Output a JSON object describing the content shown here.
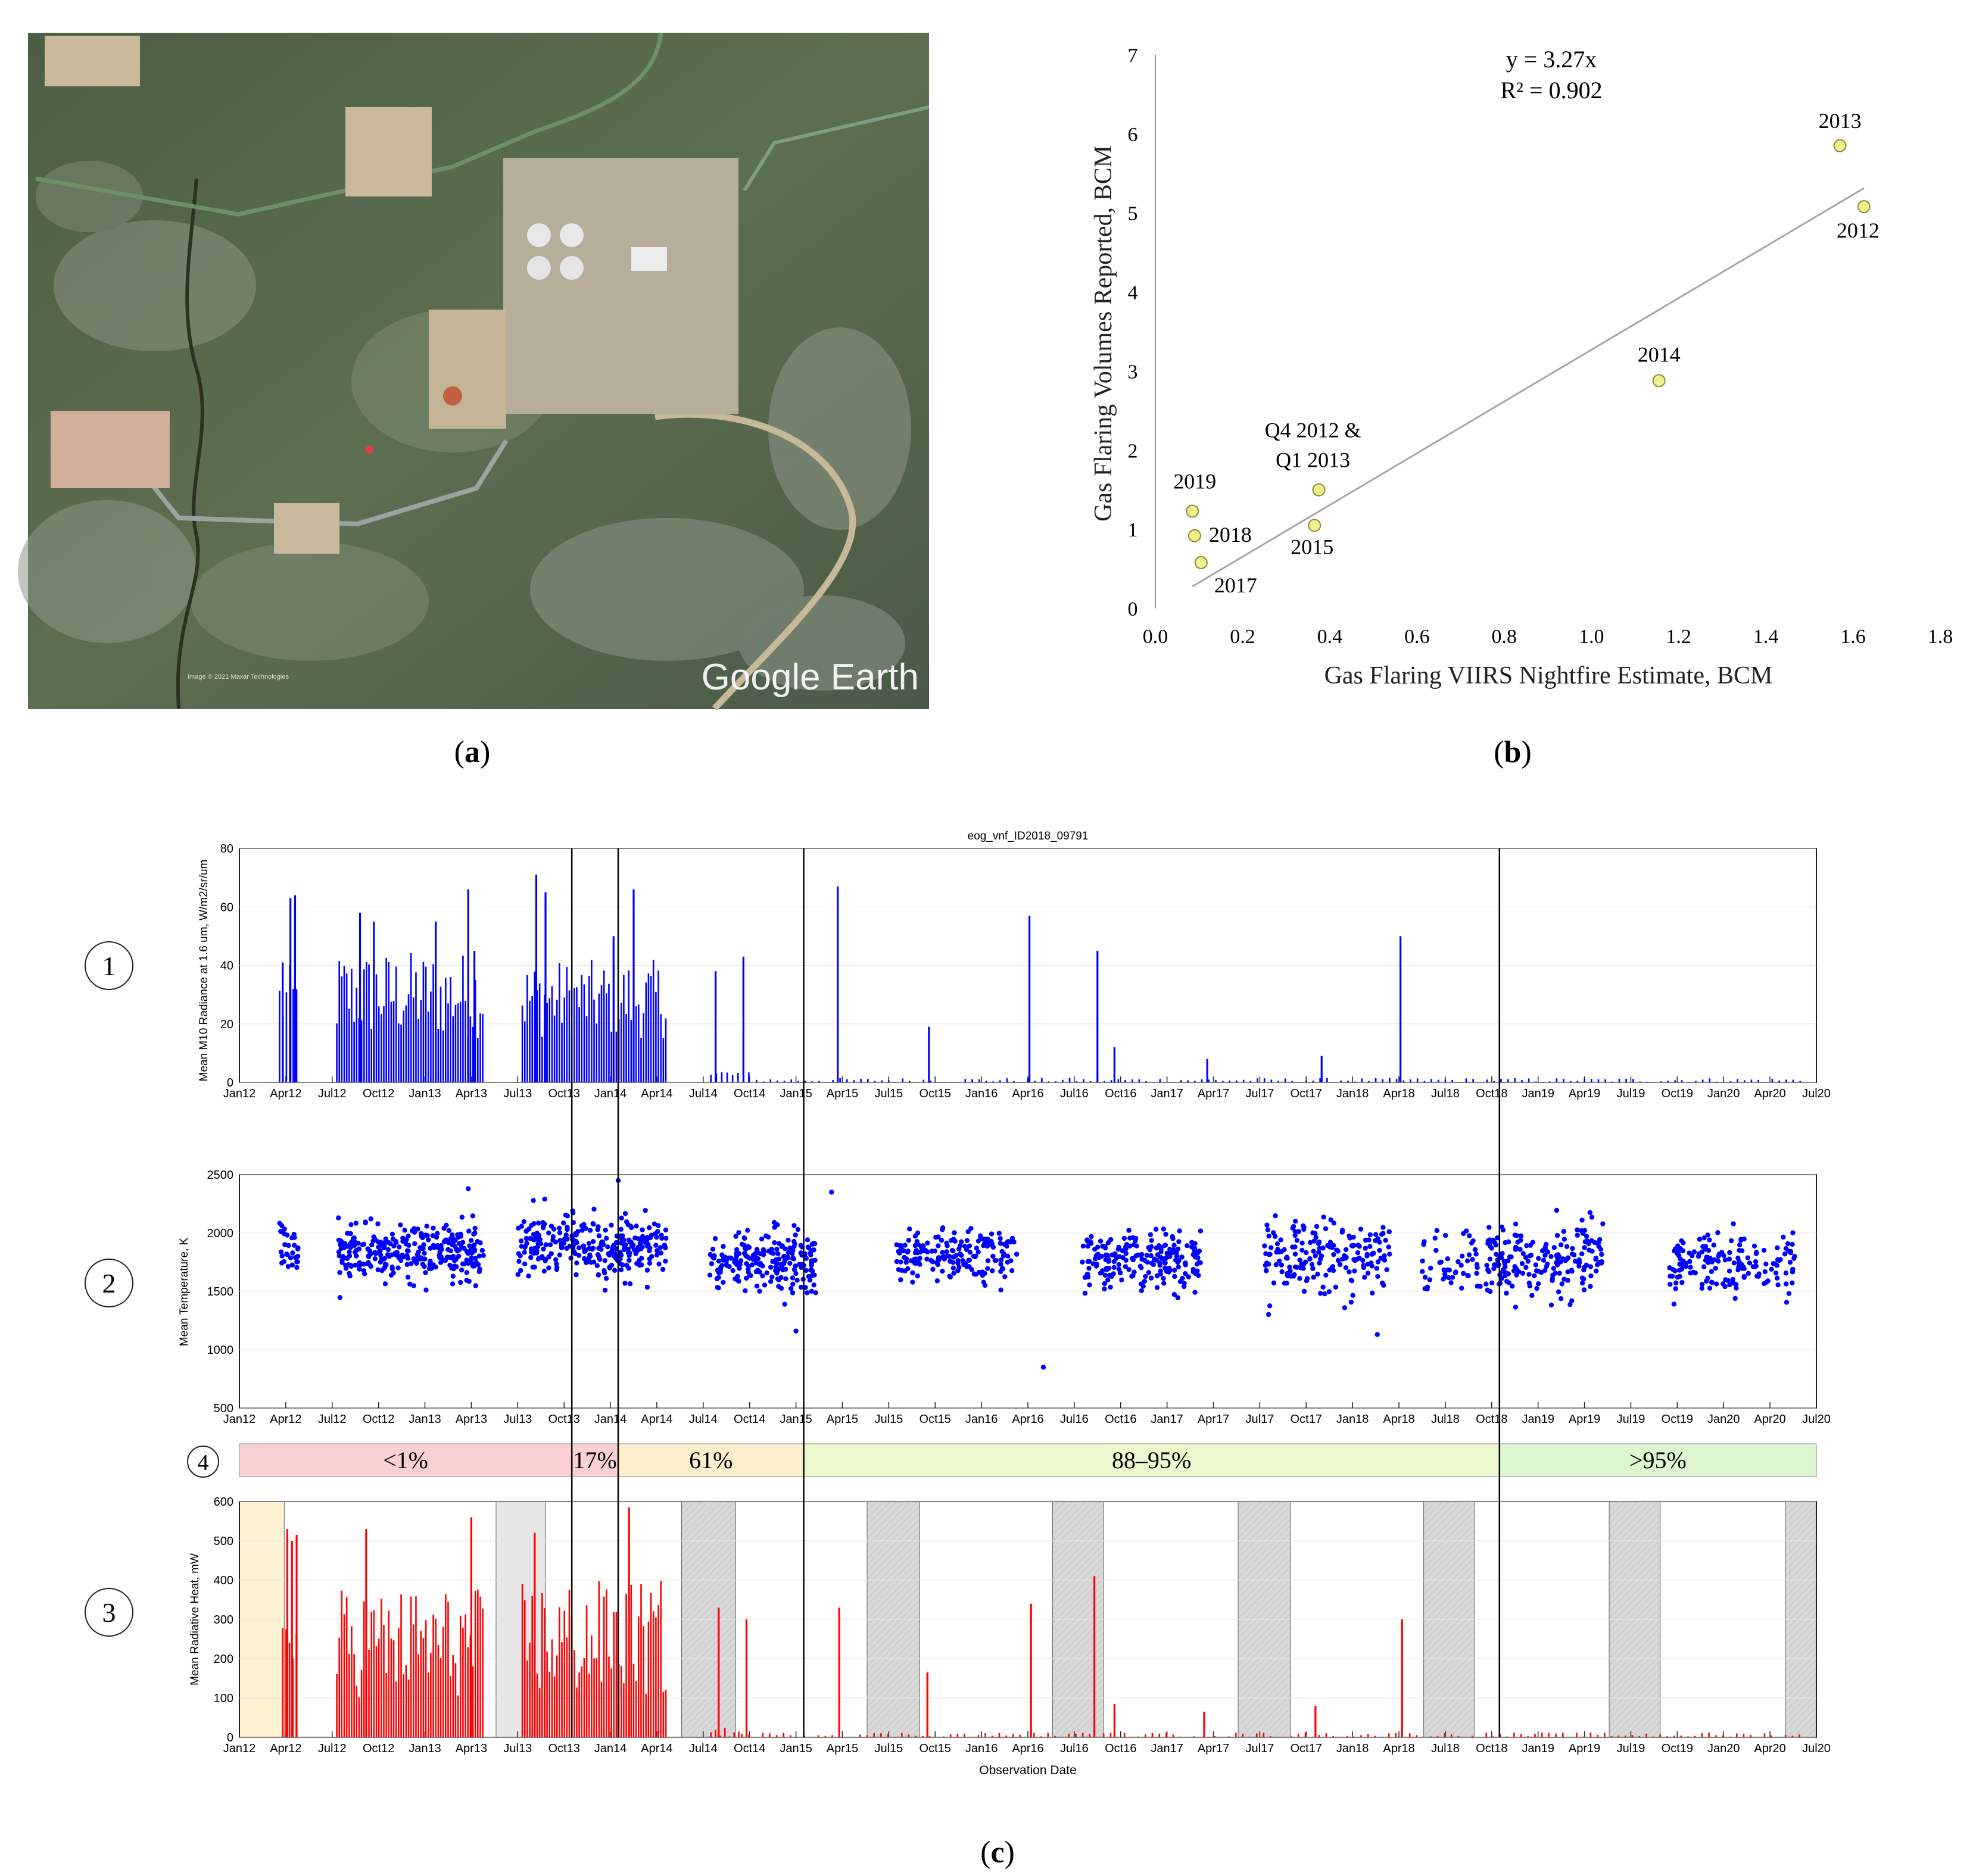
{
  "panel_labels": {
    "a": "a",
    "b": "b",
    "c": "c"
  },
  "satellite_image": {
    "watermark": "Google Earth",
    "credit": "Image © 2021 Maxar Technologies"
  },
  "chart_data": [
    {
      "id": "b",
      "type": "scatter",
      "title": "",
      "xlabel": "Gas Flaring VIIRS Nightfire Estimate, BCM",
      "ylabel": "Gas Flaring Volumes Reported, BCM",
      "xlim": [
        0,
        1.8
      ],
      "ylim": [
        0,
        7
      ],
      "xticks": [
        0,
        0.2,
        0.4,
        0.6,
        0.8,
        1.0,
        1.2,
        1.4,
        1.6,
        1.8
      ],
      "xtick_labels": [
        "0.0",
        "0.2",
        "0.4",
        "0.6",
        "0.8",
        "1.0",
        "1.2",
        "1.4",
        "1.6",
        "1.8"
      ],
      "yticks": [
        0,
        1,
        2,
        3,
        4,
        5,
        6,
        7
      ],
      "points": [
        {
          "label": "2019",
          "x": 0.085,
          "y": 1.23
        },
        {
          "label": "2018",
          "x": 0.09,
          "y": 0.92
        },
        {
          "label": "2017",
          "x": 0.105,
          "y": 0.58
        },
        {
          "label": "Q4 2012 &",
          "label2": "Q1 2013",
          "x": 0.375,
          "y": 1.5
        },
        {
          "label": "2015",
          "x": 0.365,
          "y": 1.05
        },
        {
          "label": "2014",
          "x": 1.155,
          "y": 2.88
        },
        {
          "label": "2013",
          "x": 1.57,
          "y": 5.85
        },
        {
          "label": "2012",
          "x": 1.625,
          "y": 5.08
        }
      ],
      "trendline": {
        "slope": 3.27,
        "x_range": [
          0.085,
          1.625
        ]
      },
      "equation": "y = 3.27x",
      "r2": "R² = 0.902",
      "point_color": "#f2ee8c"
    },
    {
      "id": "c",
      "type": "bar",
      "title": "eog_vnf_ID2018_09791",
      "xlabel": "Observation Date",
      "xticks": [
        "Jan12",
        "Apr12",
        "Jul12",
        "Oct12",
        "Jan13",
        "Apr13",
        "Jul13",
        "Oct13",
        "Jan14",
        "Apr14",
        "Jul14",
        "Oct14",
        "Jan15",
        "Apr15",
        "Jul15",
        "Oct15",
        "Jan16",
        "Apr16",
        "Jul16",
        "Oct16",
        "Jan17",
        "Apr17",
        "Jul17",
        "Oct17",
        "Jan18",
        "Apr18",
        "Jul18",
        "Oct18",
        "Jan19",
        "Apr19",
        "Jul19",
        "Oct19",
        "Jan20",
        "Apr20",
        "Jul20"
      ],
      "xlim_months": [
        0,
        102
      ],
      "period_boundaries_months": [
        21.5,
        24.5,
        36.5,
        81.5
      ],
      "row_labels": [
        "1",
        "2",
        "4",
        "3"
      ],
      "panel1": {
        "ylabel": "Mean M10 Radiance at 1.6 um, W/m2/sr/um",
        "ylim": [
          0,
          80
        ],
        "yticks": [
          0,
          20,
          40,
          60,
          80
        ],
        "color": "#0000ff",
        "peaks": [
          {
            "m": 2.8,
            "v": 41
          },
          {
            "m": 3.3,
            "v": 63
          },
          {
            "m": 3.6,
            "v": 64
          },
          {
            "m": 7.8,
            "v": 58
          },
          {
            "m": 8.7,
            "v": 55
          },
          {
            "m": 12.7,
            "v": 55
          },
          {
            "m": 14.8,
            "v": 66
          },
          {
            "m": 15.2,
            "v": 45
          },
          {
            "m": 19.2,
            "v": 71
          },
          {
            "m": 19.8,
            "v": 65
          },
          {
            "m": 24.2,
            "v": 50
          },
          {
            "m": 25.5,
            "v": 66
          },
          {
            "m": 30.8,
            "v": 38
          },
          {
            "m": 32.6,
            "v": 43
          },
          {
            "m": 38.7,
            "v": 67
          },
          {
            "m": 44.6,
            "v": 19
          },
          {
            "m": 51.1,
            "v": 57
          },
          {
            "m": 55.5,
            "v": 45
          },
          {
            "m": 56.6,
            "v": 12
          },
          {
            "m": 62.6,
            "v": 8
          },
          {
            "m": 70.0,
            "v": 9
          },
          {
            "m": 75.1,
            "v": 50
          }
        ],
        "dense_segments": [
          {
            "start": 2.6,
            "end": 3.8,
            "low": 15,
            "high": 40,
            "step": 0.22
          },
          {
            "start": 6.3,
            "end": 15.8,
            "low": 15,
            "high": 45,
            "step": 0.16
          },
          {
            "start": 18.3,
            "end": 27.6,
            "low": 15,
            "high": 42,
            "step": 0.16
          },
          {
            "start": 30.5,
            "end": 33.0,
            "low": 0,
            "high": 5,
            "step": 0.35
          },
          {
            "start": 33.0,
            "end": 101.0,
            "low": 0,
            "high": 1.5,
            "step": 0.45
          }
        ]
      },
      "panel2": {
        "ylabel": "Mean Temperature, K",
        "ylim": [
          500,
          2500
        ],
        "yticks": [
          500,
          1000,
          1500,
          2000,
          2500
        ],
        "color": "#0000ff",
        "clusters": [
          {
            "start": 2.6,
            "end": 3.8,
            "mean": 1850,
            "sd": 110,
            "n": 30
          },
          {
            "start": 6.4,
            "end": 15.8,
            "mean": 1830,
            "sd": 110,
            "n": 300
          },
          {
            "start": 18.0,
            "end": 27.6,
            "mean": 1880,
            "sd": 130,
            "n": 300
          },
          {
            "start": 30.4,
            "end": 37.3,
            "mean": 1760,
            "sd": 130,
            "n": 220
          },
          {
            "start": 42.5,
            "end": 50.3,
            "mean": 1800,
            "sd": 110,
            "n": 180
          },
          {
            "start": 54.5,
            "end": 62.2,
            "mean": 1760,
            "sd": 120,
            "n": 210
          },
          {
            "start": 66.3,
            "end": 74.4,
            "mean": 1800,
            "sd": 150,
            "n": 190
          },
          {
            "start": 76.5,
            "end": 80.3,
            "mean": 1720,
            "sd": 160,
            "n": 50
          },
          {
            "start": 80.6,
            "end": 88.2,
            "mean": 1760,
            "sd": 160,
            "n": 190
          },
          {
            "start": 92.5,
            "end": 100.6,
            "mean": 1730,
            "sd": 140,
            "n": 160
          }
        ],
        "outliers": [
          {
            "m": 52.0,
            "v": 850
          },
          {
            "m": 36.0,
            "v": 1160
          },
          {
            "m": 73.6,
            "v": 1130
          },
          {
            "m": 38.3,
            "v": 2350
          },
          {
            "m": 24.5,
            "v": 2450
          },
          {
            "m": 14.8,
            "v": 2380
          }
        ]
      },
      "panel4": {
        "segments": [
          {
            "label": "<1%",
            "start": 0,
            "end": 21.5,
            "color": "#fad0d0"
          },
          {
            "label": "17%",
            "start": 21.5,
            "end": 24.5,
            "color": "#fad0d0"
          },
          {
            "label": "61%",
            "start": 24.5,
            "end": 36.5,
            "color": "#fdefce"
          },
          {
            "label": "88–95%",
            "start": 36.5,
            "end": 81.5,
            "color": "#ecf9ce"
          },
          {
            "label": ">95%",
            "start": 81.5,
            "end": 102,
            "color": "#dcf6cf"
          }
        ]
      },
      "panel3": {
        "ylabel": "Mean Radiative Heat, mW",
        "ylim": [
          0,
          600
        ],
        "yticks": [
          0,
          100,
          200,
          300,
          400,
          500,
          600
        ],
        "color": "#ff0000",
        "shaded": [
          {
            "start": 0,
            "end": 2.9,
            "color": "#fdf3d2"
          },
          {
            "start": 16.6,
            "end": 19.8,
            "color": "#e6e6e6"
          },
          {
            "start": 28.6,
            "end": 32.1,
            "color": "#d6d6d6"
          },
          {
            "start": 40.6,
            "end": 44.0,
            "color": "#d6d6d6"
          },
          {
            "start": 52.6,
            "end": 55.9,
            "color": "#d6d6d6"
          },
          {
            "start": 64.6,
            "end": 68.0,
            "color": "#d6d6d6"
          },
          {
            "start": 76.6,
            "end": 79.9,
            "color": "#d6d6d6"
          },
          {
            "start": 88.6,
            "end": 91.9,
            "color": "#d6d6d6"
          },
          {
            "start": 100.0,
            "end": 102.0,
            "color": "#d6d6d6"
          }
        ],
        "peaks": [
          {
            "m": 3.1,
            "v": 530
          },
          {
            "m": 3.4,
            "v": 500
          },
          {
            "m": 3.7,
            "v": 515
          },
          {
            "m": 8.2,
            "v": 530
          },
          {
            "m": 15.0,
            "v": 560
          },
          {
            "m": 19.1,
            "v": 520
          },
          {
            "m": 25.2,
            "v": 585
          },
          {
            "m": 31.0,
            "v": 330
          },
          {
            "m": 32.8,
            "v": 300
          },
          {
            "m": 38.8,
            "v": 330
          },
          {
            "m": 44.5,
            "v": 165
          },
          {
            "m": 51.2,
            "v": 340
          },
          {
            "m": 55.3,
            "v": 410
          },
          {
            "m": 56.6,
            "v": 85
          },
          {
            "m": 62.4,
            "v": 65
          },
          {
            "m": 69.6,
            "v": 80
          },
          {
            "m": 75.2,
            "v": 300
          }
        ],
        "dense_segments": [
          {
            "start": 2.8,
            "end": 3.9,
            "low": 100,
            "high": 350,
            "step": 0.22
          },
          {
            "start": 6.3,
            "end": 15.8,
            "low": 100,
            "high": 380,
            "step": 0.16
          },
          {
            "start": 18.3,
            "end": 27.6,
            "low": 100,
            "high": 400,
            "step": 0.16
          },
          {
            "start": 30.5,
            "end": 32.5,
            "low": 0,
            "high": 25,
            "step": 0.3
          },
          {
            "start": 32.5,
            "end": 101.0,
            "low": 0,
            "high": 12,
            "step": 0.45
          }
        ]
      }
    }
  ]
}
